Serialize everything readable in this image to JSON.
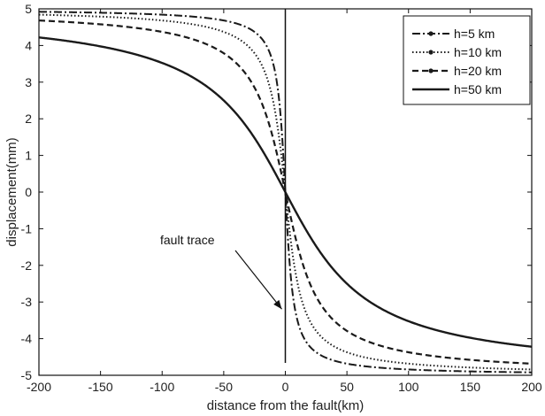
{
  "chart_data": {
    "type": "line",
    "xlabel": "distance from the fault(km)",
    "ylabel": "displacement(mm)",
    "xlim": [
      -200,
      200
    ],
    "ylim": [
      -5,
      5
    ],
    "x_ticks": [
      -200,
      -150,
      -100,
      -50,
      0,
      50,
      100,
      150,
      200
    ],
    "y_ticks": [
      5,
      4,
      3,
      2,
      1,
      0,
      -1,
      -2,
      -3,
      -4,
      -5
    ],
    "grid": false,
    "legend_position": "top-right",
    "amplitude": 5,
    "series": [
      {
        "name": "h=5 km",
        "depth_km": 5,
        "dash": "9,3,2,3",
        "width": 2
      },
      {
        "name": "h=10 km",
        "depth_km": 10,
        "dash": "1.5,2.5",
        "width": 2
      },
      {
        "name": "h=20 km",
        "depth_km": 20,
        "dash": "7,4",
        "width": 2.2
      },
      {
        "name": "h=50 km",
        "depth_km": 50,
        "dash": "",
        "width": 2.4
      }
    ],
    "annotation": {
      "text": "fault trace",
      "target_x": 0,
      "target_y": -3
    },
    "fault_line_x": 0
  }
}
